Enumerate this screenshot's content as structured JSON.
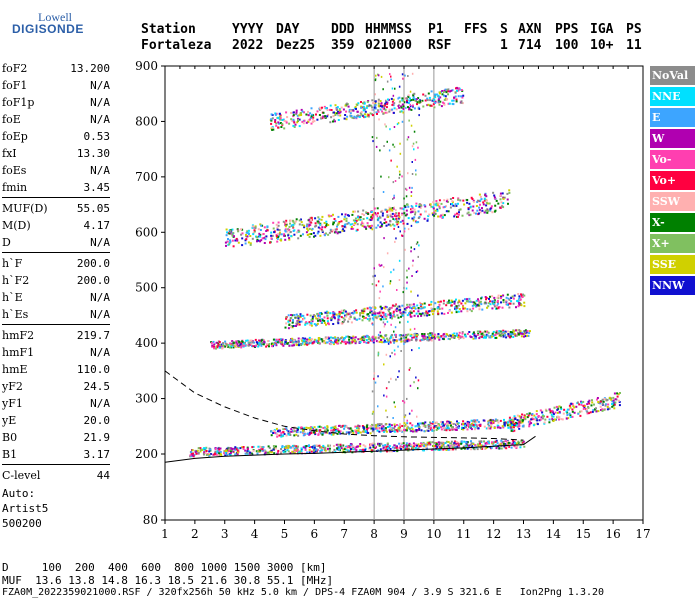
{
  "logo": {
    "line1": "Lowell",
    "line2": "DIGISONDE"
  },
  "header": {
    "labels": [
      "Station",
      "YYYY",
      "DAY",
      "DDD",
      "HHMMSS",
      "P1",
      "FFS",
      "S",
      "AXN",
      "PPS",
      "IGA",
      "PS"
    ],
    "values": [
      "Fortaleza",
      "2022",
      "Dez25",
      "359",
      "021000",
      "RSF",
      "",
      "1",
      "714",
      "100",
      "10+",
      "11"
    ]
  },
  "params": [
    {
      "group": [
        {
          "name": "foF2",
          "value": "13.200"
        },
        {
          "name": "foF1",
          "value": "N/A"
        },
        {
          "name": "foF1p",
          "value": "N/A"
        },
        {
          "name": "foE",
          "value": "N/A"
        },
        {
          "name": "foEp",
          "value": "0.53"
        },
        {
          "name": "fxI",
          "value": "13.30"
        },
        {
          "name": "foEs",
          "value": "N/A"
        },
        {
          "name": "fmin",
          "value": "3.45"
        }
      ]
    },
    {
      "group": [
        {
          "name": "MUF(D)",
          "value": "55.05"
        },
        {
          "name": "M(D)",
          "value": "4.17"
        },
        {
          "name": "D",
          "value": "N/A"
        }
      ]
    },
    {
      "group": [
        {
          "name": "h`F",
          "value": "200.0"
        },
        {
          "name": "h`F2",
          "value": "200.0"
        },
        {
          "name": "h`E",
          "value": "N/A"
        },
        {
          "name": "h`Es",
          "value": "N/A"
        }
      ]
    },
    {
      "group": [
        {
          "name": "hmF2",
          "value": "219.7"
        },
        {
          "name": "hmF1",
          "value": "N/A"
        },
        {
          "name": "hmE",
          "value": "110.0"
        },
        {
          "name": "yF2",
          "value": "24.5"
        },
        {
          "name": "yF1",
          "value": "N/A"
        },
        {
          "name": "yE",
          "value": "20.0"
        },
        {
          "name": "B0",
          "value": "21.9"
        },
        {
          "name": "B1",
          "value": "3.17"
        }
      ]
    },
    {
      "group": [
        {
          "name": "C-level",
          "value": "44"
        }
      ]
    }
  ],
  "auto": {
    "line1": "Auto:",
    "line2": "Artist5",
    "line3": "500200"
  },
  "legend": [
    {
      "label": "NoVal",
      "color": "#8c8c8c"
    },
    {
      "label": "NNE",
      "color": "#00e0ff"
    },
    {
      "label": "E",
      "color": "#3da5ff"
    },
    {
      "label": "W",
      "color": "#b000b0"
    },
    {
      "label": "Vo-",
      "color": "#ff3fb0"
    },
    {
      "label": "Vo+",
      "color": "#ff0040"
    },
    {
      "label": "SSW",
      "color": "#ffb0b0"
    },
    {
      "label": "X-",
      "color": "#008000"
    },
    {
      "label": "X+",
      "color": "#80c060"
    },
    {
      "label": "SSE",
      "color": "#d0d000"
    },
    {
      "label": "NNW",
      "color": "#1010d0"
    }
  ],
  "footer": {
    "d_row": "D     100  200  400  600  800 1000 1500 3000 [km]",
    "muf_row": "MUF  13.6 13.8 14.8 16.3 18.5 21.6 30.8 55.1 [MHz]",
    "file_row": "FZA0M_2022359021000.RSF / 320fx256h 50 kHz 5.0 km / DPS-4 FZA0M 904 / 3.9 S 321.6 E   Ion2Png 1.3.20"
  },
  "chart_data": {
    "type": "scatter",
    "x_ticks": [
      "1",
      "2",
      "3",
      "4",
      "5",
      "6",
      "7",
      "8",
      "9",
      "10",
      "11",
      "12",
      "13",
      "14",
      "15",
      "16",
      "17"
    ],
    "y_ticks": [
      "80",
      "200",
      "300",
      "400",
      "500",
      "600",
      "700",
      "800",
      "900"
    ],
    "xlim": [
      1,
      17
    ],
    "ylim_display": [
      80,
      900
    ],
    "grid_x": [
      8,
      9,
      10
    ],
    "trace_dashed": [
      [
        1,
        350
      ],
      [
        2,
        310
      ],
      [
        3,
        285
      ],
      [
        4,
        265
      ],
      [
        5,
        250
      ],
      [
        6,
        242
      ],
      [
        7,
        236
      ],
      [
        8,
        233
      ],
      [
        9,
        231
      ],
      [
        10,
        230
      ],
      [
        11,
        229
      ],
      [
        12,
        228
      ],
      [
        13,
        225
      ]
    ],
    "trace_solid": [
      [
        1,
        185
      ],
      [
        2,
        192
      ],
      [
        3,
        196
      ],
      [
        4,
        198
      ],
      [
        5,
        200
      ],
      [
        6,
        201
      ],
      [
        7,
        203
      ],
      [
        8,
        205
      ],
      [
        9,
        207
      ],
      [
        10,
        209
      ],
      [
        11,
        211
      ],
      [
        12,
        214
      ],
      [
        13,
        217
      ],
      [
        13.4,
        232
      ]
    ],
    "echo_layers": [
      {
        "hmin": 205,
        "hmax": 230,
        "fstart": 1.8,
        "fend": 13.0,
        "h_start": 205,
        "h_end": 220
      },
      {
        "hmin": 235,
        "hmax": 262,
        "fstart": 4.5,
        "fend": 13.0,
        "h_start": 240,
        "h_end": 258
      },
      {
        "hmin": 260,
        "hmax": 305,
        "fstart": 12.5,
        "fend": 16.2,
        "h_start": 255,
        "h_end": 300
      },
      {
        "hmin": 398,
        "hmax": 420,
        "fstart": 2.5,
        "fend": 13.2,
        "h_start": 398,
        "h_end": 420
      },
      {
        "hmin": 440,
        "hmax": 480,
        "fstart": 5.0,
        "fend": 13.0,
        "h_start": 440,
        "h_end": 480
      },
      {
        "hmin": 590,
        "hmax": 650,
        "fstart": 3.0,
        "fend": 12.5,
        "h_start": 590,
        "h_end": 660
      },
      {
        "hmin": 800,
        "hmax": 850,
        "fstart": 4.5,
        "fend": 11.0,
        "h_start": 800,
        "h_end": 850
      }
    ]
  }
}
